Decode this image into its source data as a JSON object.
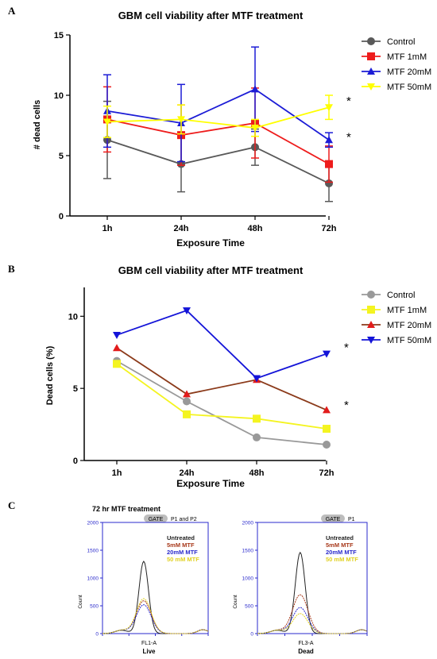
{
  "chart_data": [
    {
      "panel": "A",
      "type": "line",
      "title": "GBM cell viability after MTF treatment",
      "xlabel": "Exposure Time",
      "ylabel": "# dead cells",
      "categories": [
        "1h",
        "24h",
        "48h",
        "72h"
      ],
      "ylim": [
        0,
        15
      ],
      "yticks": [
        0,
        5,
        10,
        15
      ],
      "legend_position": "right",
      "series": [
        {
          "name": "Control",
          "color": "#595959",
          "marker": "circle",
          "values": [
            6.3,
            4.3,
            5.7,
            2.7
          ],
          "errors": [
            3.2,
            2.3,
            1.5,
            1.5
          ]
        },
        {
          "name": "MTF 1mM",
          "color": "#ee1c1c",
          "marker": "square",
          "values": [
            8.0,
            6.7,
            7.7,
            4.3
          ],
          "errors": [
            2.7,
            2.5,
            2.9,
            1.5
          ]
        },
        {
          "name": "MTF 20mM",
          "color": "#1c1cd6",
          "marker": "triangle-up",
          "values": [
            8.7,
            7.7,
            10.5,
            6.3
          ],
          "errors": [
            3.0,
            3.2,
            3.5,
            0.6
          ]
        },
        {
          "name": "MTF 50mM",
          "color": "#ffff00",
          "marker": "triangle-down",
          "values": [
            7.8,
            8.0,
            7.3,
            9.0
          ],
          "errors": [
            1.3,
            1.2,
            0.7,
            1.0
          ]
        }
      ],
      "annotations": [
        {
          "text": "*",
          "category": "72h",
          "y": 9.6
        },
        {
          "text": "*",
          "category": "72h",
          "y": 6.6
        }
      ]
    },
    {
      "panel": "B",
      "type": "line",
      "title": "GBM cell viability after MTF treatment",
      "xlabel": "Exposure Time",
      "ylabel": "Dead cells (%)",
      "categories": [
        "1h",
        "24h",
        "48h",
        "72h"
      ],
      "ylim": [
        0,
        12
      ],
      "yticks": [
        0,
        5,
        10
      ],
      "legend_position": "right",
      "series": [
        {
          "name": "Control",
          "color": "#999999",
          "marker": "circle",
          "values": [
            6.9,
            4.1,
            1.6,
            1.1
          ]
        },
        {
          "name": "MTF 1mM",
          "color": "#f4f420",
          "marker": "square",
          "values": [
            6.7,
            3.2,
            2.9,
            2.2
          ]
        },
        {
          "name": "MTF 20mM",
          "color": "#e21b1b",
          "line_color": "#8b3a1a",
          "marker": "triangle-up",
          "values": [
            7.8,
            4.6,
            5.6,
            3.5
          ]
        },
        {
          "name": "MTF 50mM",
          "color": "#1414d8",
          "marker": "triangle-down",
          "values": [
            8.7,
            10.4,
            5.7,
            7.4
          ]
        }
      ],
      "annotations": [
        {
          "text": "*",
          "category": "72h",
          "y": 7.9
        },
        {
          "text": "*",
          "category": "72h",
          "y": 3.9
        }
      ]
    }
  ],
  "panel_c": {
    "label": "C",
    "caption": "72 hr MTF treatment",
    "histograms": [
      {
        "gate_label": "GATE",
        "gate_value": "P1 and P2",
        "xlabel": "FL1-A",
        "ylabel": "Count",
        "bottom_label": "Live",
        "yticks": [
          "0",
          "500",
          "1000",
          "1500",
          "2000"
        ],
        "legend": [
          {
            "name": "Untreated",
            "color": "#222222"
          },
          {
            "name": "5mM MTF",
            "color": "#a83a1c"
          },
          {
            "name": "20mM MTF",
            "color": "#2a2acc"
          },
          {
            "name": "50 mM MTF",
            "color": "#e0d020"
          }
        ],
        "peaks": [
          1300,
          590,
          520,
          630
        ]
      },
      {
        "gate_label": "GATE",
        "gate_value": "P1",
        "xlabel": "FL3-A",
        "ylabel": "Count",
        "bottom_label": "Dead",
        "yticks": [
          "0",
          "500",
          "1000",
          "1500",
          "2000"
        ],
        "legend": [
          {
            "name": "Untreated",
            "color": "#222222"
          },
          {
            "name": "5mM MTF",
            "color": "#a83a1c"
          },
          {
            "name": "20mM MTF",
            "color": "#2a2acc"
          },
          {
            "name": "50 mM MTF",
            "color": "#e0d020"
          }
        ],
        "peaks": [
          1460,
          700,
          470,
          360
        ]
      }
    ]
  }
}
